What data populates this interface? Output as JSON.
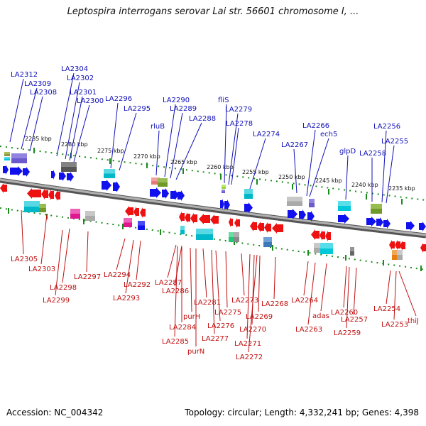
{
  "title": "Leptospira interrogans serovar Lai str. 56601 chromosome I, ...",
  "accession": "Accession: NC_004342",
  "meta": "Topology: circular; Length: 4,332,241 bp; Genes: 4,398",
  "colors": {
    "forward": "#1111ee",
    "reverse": "#ee1111",
    "forward_label": "#1010b8",
    "reverse_label": "#c01010",
    "backbone": "#888888",
    "tick": "#1a8a1a"
  },
  "kbp_labels": [
    "2285 kbp",
    "2280 kbp",
    "2275 kbp",
    "2270 kbp",
    "2265 kbp",
    "2260 kbp",
    "2255 kbp",
    "2250 kbp",
    "2245 kbp",
    "2240 kbp",
    "2235 kbp"
  ],
  "top_genes": [
    "LA2312",
    "LA2309",
    "LA2308",
    "LA2304",
    "LA2302",
    "LA2301",
    "LA2300",
    "LA2296",
    "LA2295",
    "rluB",
    "LA2290",
    "LA2289",
    "LA2288",
    "fliS",
    "LA2279",
    "LA2278",
    "LA2274",
    "LA2267",
    "LA2266",
    "ech5",
    "glpD",
    "LA2258",
    "LA2256",
    "LA2255"
  ],
  "bottom_genes": [
    "LA2305",
    "LA2303",
    "LA2298",
    "LA2299",
    "LA2297",
    "LA2294",
    "LA2293",
    "LA2292",
    "LA2287",
    "LA2286",
    "LA2281",
    "purH",
    "LA2284",
    "LA2285",
    "purN",
    "LA2277",
    "LA2276",
    "LA2275",
    "LA2273",
    "LA2269",
    "LA2270",
    "LA2271",
    "LA2272",
    "LA2268",
    "LA2264",
    "LA2263",
    "adas",
    "LA2260",
    "LA2257",
    "LA2259",
    "LA2254",
    "LA2253",
    "thiJ"
  ]
}
